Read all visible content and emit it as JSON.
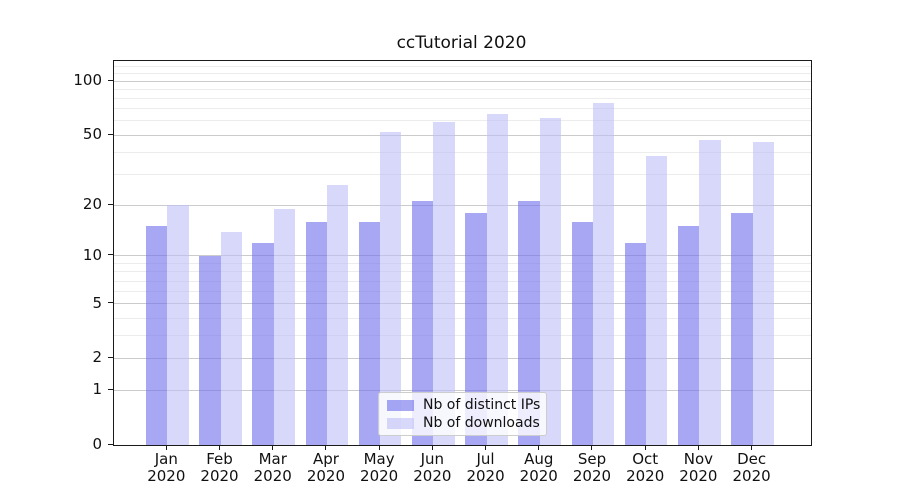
{
  "title": "ccTutorial 2020",
  "chart_data": {
    "type": "bar",
    "title": "ccTutorial 2020",
    "categories": [
      "Jan",
      "Feb",
      "Mar",
      "Apr",
      "May",
      "Jun",
      "Jul",
      "Aug",
      "Sep",
      "Oct",
      "Nov",
      "Dec"
    ],
    "year_label": "2020",
    "series": [
      {
        "name": "Nb of distinct IPs",
        "key": "distinct-ips",
        "color": "rgba(113,113,238,0.62)",
        "values": [
          15,
          10,
          12,
          16,
          16,
          21,
          18,
          21,
          16,
          12,
          15,
          18
        ]
      },
      {
        "name": "Nb of downloads",
        "key": "downloads",
        "color": "rgba(190,190,246,0.60)",
        "values": [
          20,
          14,
          19,
          26,
          52,
          59,
          66,
          62,
          76,
          38,
          47,
          46
        ]
      }
    ],
    "yscale": "log1p",
    "yticks": [
      0,
      1,
      2,
      5,
      10,
      20,
      50,
      100
    ],
    "minor_gridlines": [
      3,
      4,
      6,
      7,
      8,
      9,
      30,
      40,
      60,
      70,
      80,
      90,
      110,
      120
    ],
    "ylim": [
      0,
      130
    ],
    "grid": true,
    "legend_position": "lower center"
  },
  "colors": {
    "axis": "#1a1a1a",
    "grid_major": "#cbcbcb",
    "grid_minor": "#ececec",
    "bar_distinct_ips_net": "#a7a7f4",
    "bar_downloads_net": "#dadaf9",
    "background": "#ffffff"
  }
}
